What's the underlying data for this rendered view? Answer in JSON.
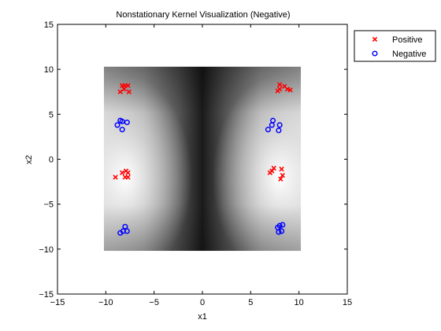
{
  "chart_data": {
    "type": "scatter",
    "title": "Nonstationary Kernel Visualization (Negative)",
    "xlabel": "x1",
    "ylabel": "x2",
    "xlim": [
      -15,
      15
    ],
    "ylim": [
      -15,
      15
    ],
    "xticks": [
      -15,
      -10,
      -5,
      0,
      5,
      10,
      15
    ],
    "yticks": [
      -15,
      -10,
      -5,
      0,
      5,
      10,
      15
    ],
    "xtick_labels": [
      "−15",
      "−10",
      "−5",
      "0",
      "5",
      "10",
      "15"
    ],
    "ytick_labels": [
      "−15",
      "−10",
      "−5",
      "0",
      "5",
      "10",
      "15"
    ],
    "grid": false,
    "legend_position": "outside-top-right",
    "background_image": {
      "type": "heatmap",
      "colormap": "gray",
      "extent": {
        "x": [
          -10.2,
          10.2
        ],
        "y": [
          -10.2,
          10.3
        ]
      },
      "bright_centers": [
        [
          -8,
          -2
        ],
        [
          8,
          -2
        ]
      ]
    },
    "series": [
      {
        "name": "Positive",
        "marker": "x",
        "color": "#ff0000",
        "points": [
          [
            -8.3,
            8.2
          ],
          [
            -8.0,
            8.2
          ],
          [
            -7.7,
            8.2
          ],
          [
            -8.5,
            7.5
          ],
          [
            -8.1,
            7.8
          ],
          [
            -7.6,
            7.5
          ],
          [
            8.0,
            8.3
          ],
          [
            8.5,
            8.1
          ],
          [
            8.8,
            7.8
          ],
          [
            8.0,
            7.8
          ],
          [
            7.8,
            7.6
          ],
          [
            9.1,
            7.7
          ],
          [
            -9.0,
            -2.0
          ],
          [
            -8.3,
            -1.5
          ],
          [
            -8.0,
            -2.0
          ],
          [
            -7.7,
            -1.5
          ],
          [
            -7.7,
            -2.0
          ],
          [
            -7.9,
            -1.3
          ],
          [
            7.2,
            -1.3
          ],
          [
            7.4,
            -1.0
          ],
          [
            7.0,
            -1.5
          ],
          [
            8.1,
            -2.2
          ],
          [
            8.3,
            -1.8
          ],
          [
            8.2,
            -1.1
          ]
        ]
      },
      {
        "name": "Negative",
        "marker": "o",
        "color": "#0000ff",
        "points": [
          [
            -8.5,
            4.3
          ],
          [
            -8.3,
            4.2
          ],
          [
            -8.8,
            3.8
          ],
          [
            -8.3,
            3.3
          ],
          [
            -7.8,
            4.1
          ],
          [
            7.3,
            4.3
          ],
          [
            7.2,
            3.8
          ],
          [
            6.8,
            3.3
          ],
          [
            8.0,
            3.8
          ],
          [
            7.9,
            3.2
          ],
          [
            -8.0,
            -7.5
          ],
          [
            -8.2,
            -8.0
          ],
          [
            -8.5,
            -8.2
          ],
          [
            -7.8,
            -8.0
          ],
          [
            8.0,
            -7.4
          ],
          [
            8.3,
            -7.3
          ],
          [
            8.2,
            -8.0
          ],
          [
            7.9,
            -8.1
          ],
          [
            7.8,
            -7.6
          ]
        ]
      }
    ]
  }
}
